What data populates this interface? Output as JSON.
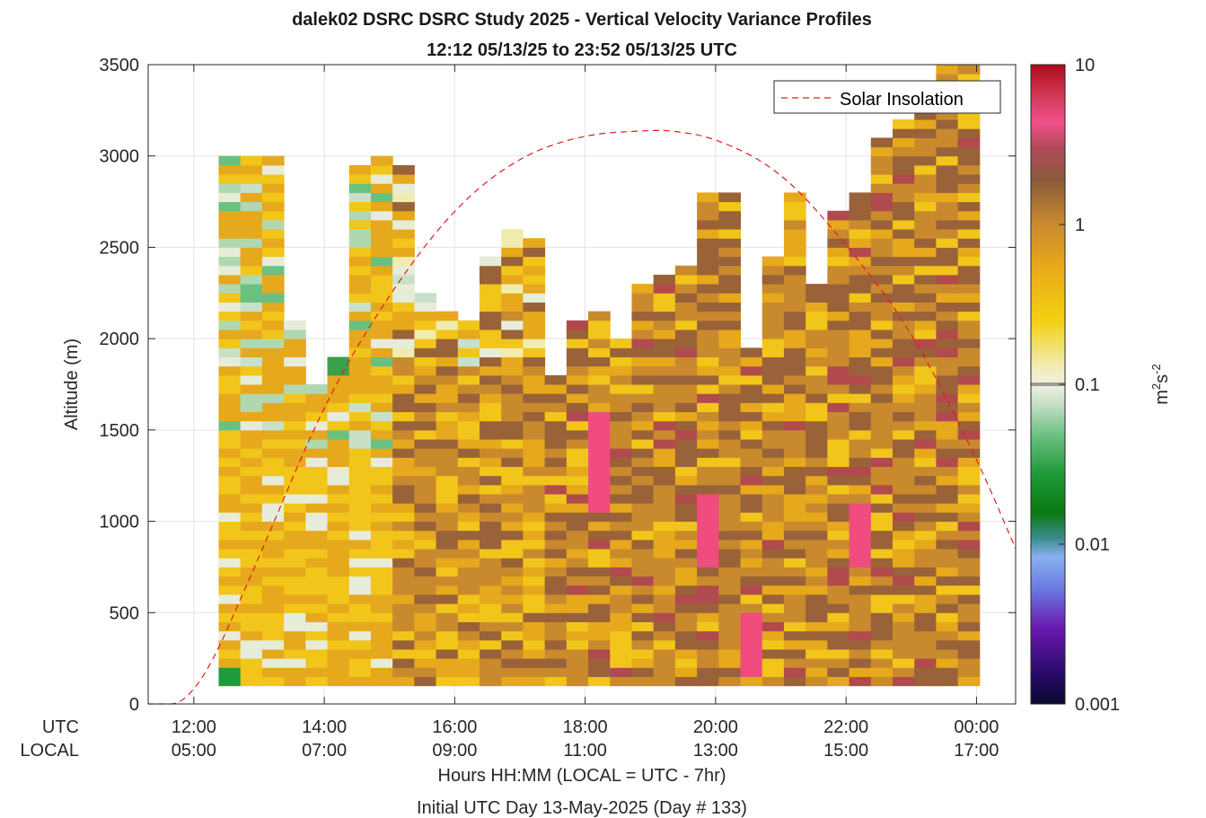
{
  "chart_data": {
    "type": "heatmap",
    "title": "dalek02 DSRC DSRC Study 2025 - Vertical Velocity Variance Profiles",
    "subtitle": "12:12 05/13/25 to 23:52 05/13/25  UTC",
    "ylabel": "Altitude (m)",
    "xlabel": "Hours HH:MM  (LOCAL = UTC - 7hr)",
    "xlabel2": "Initial UTC Day 13-May-2025 (Day # 133)",
    "xlim": [
      11.3,
      24.6
    ],
    "ylim": [
      0,
      3500
    ],
    "grid": true,
    "y_ticks": [
      "0",
      "500",
      "1000",
      "1500",
      "2000",
      "2500",
      "3000",
      "3500"
    ],
    "x_tick_values": [
      12,
      14,
      16,
      18,
      20,
      22,
      24
    ],
    "x_row_labels": [
      "UTC",
      "LOCAL"
    ],
    "x_ticks_utc": [
      "12:00",
      "14:00",
      "16:00",
      "18:00",
      "20:00",
      "22:00",
      "00:00"
    ],
    "x_ticks_local": [
      "05:00",
      "07:00",
      "09:00",
      "11:00",
      "13:00",
      "15:00",
      "17:00"
    ],
    "colorbar": {
      "label": "m2s-2",
      "scale": "log",
      "range": [
        0.001,
        10
      ],
      "tick_labels": [
        "10",
        "1",
        "0.1",
        "0.01",
        "0.001"
      ],
      "tick_values": [
        10,
        1,
        0.1,
        0.01,
        0.001
      ]
    },
    "legend": {
      "entries": [
        "Solar Insolation"
      ],
      "placement": "top-right",
      "line_color": "#e41a1c",
      "line_style": "dashed"
    },
    "profile_step_minutes": 20,
    "gate_height_m": 50,
    "bottom_gate_m": 100,
    "profiles": [
      {
        "time_utc": "12:12",
        "top_m": null
      },
      {
        "time_utc": "12:32",
        "top_m": 3000
      },
      {
        "time_utc": "12:52",
        "top_m": 3000
      },
      {
        "time_utc": "13:12",
        "top_m": 3000
      },
      {
        "time_utc": "13:32",
        "top_m": 2100
      },
      {
        "time_utc": "13:52",
        "top_m": 1750
      },
      {
        "time_utc": "14:12",
        "top_m": 1900
      },
      {
        "time_utc": "14:32",
        "top_m": 2950
      },
      {
        "time_utc": "14:52",
        "top_m": 3000
      },
      {
        "time_utc": "15:12",
        "top_m": 2950
      },
      {
        "time_utc": "15:32",
        "top_m": 2250
      },
      {
        "time_utc": "15:52",
        "top_m": 2150
      },
      {
        "time_utc": "16:12",
        "top_m": 2100
      },
      {
        "time_utc": "16:32",
        "top_m": 2450
      },
      {
        "time_utc": "16:52",
        "top_m": 2600
      },
      {
        "time_utc": "17:12",
        "top_m": 2550
      },
      {
        "time_utc": "17:32",
        "top_m": 1800
      },
      {
        "time_utc": "17:52",
        "top_m": 2100
      },
      {
        "time_utc": "18:12",
        "top_m": 2150
      },
      {
        "time_utc": "18:32",
        "top_m": 2000
      },
      {
        "time_utc": "18:52",
        "top_m": 2300
      },
      {
        "time_utc": "19:12",
        "top_m": 2350
      },
      {
        "time_utc": "19:32",
        "top_m": 2400
      },
      {
        "time_utc": "19:52",
        "top_m": 2800
      },
      {
        "time_utc": "20:12",
        "top_m": 2800
      },
      {
        "time_utc": "20:32",
        "top_m": 1950
      },
      {
        "time_utc": "20:52",
        "top_m": 2450
      },
      {
        "time_utc": "21:12",
        "top_m": 2800
      },
      {
        "time_utc": "21:32",
        "top_m": 2300
      },
      {
        "time_utc": "21:52",
        "top_m": 2700
      },
      {
        "time_utc": "22:12",
        "top_m": 2800
      },
      {
        "time_utc": "22:32",
        "top_m": 3100
      },
      {
        "time_utc": "22:52",
        "top_m": 3200
      },
      {
        "time_utc": "23:12",
        "top_m": 3250
      },
      {
        "time_utc": "23:32",
        "top_m": 3500
      },
      {
        "time_utc": "23:52",
        "top_m": 3500
      }
    ],
    "solar_insolation": {
      "x_hours": [
        11.3,
        12.0,
        13.0,
        14.0,
        15.0,
        16.0,
        17.0,
        18.0,
        19.0,
        19.3,
        20.0,
        21.0,
        22.0,
        23.0,
        24.0,
        24.6
      ],
      "y_m": [
        0,
        0,
        800,
        1650,
        2250,
        2720,
        3000,
        3120,
        3140,
        3140,
        3100,
        2920,
        2520,
        2050,
        1350,
        850
      ]
    },
    "value_colors": {
      "low_green": "#1f9a3a",
      "light": "#e6ecd8",
      "yellow": "#f2c51a",
      "gold": "#e6a81c",
      "tan": "#c98a2e",
      "brown": "#9a6238",
      "red_brown": "#b14a4c",
      "pink": "#f04c7e"
    }
  }
}
